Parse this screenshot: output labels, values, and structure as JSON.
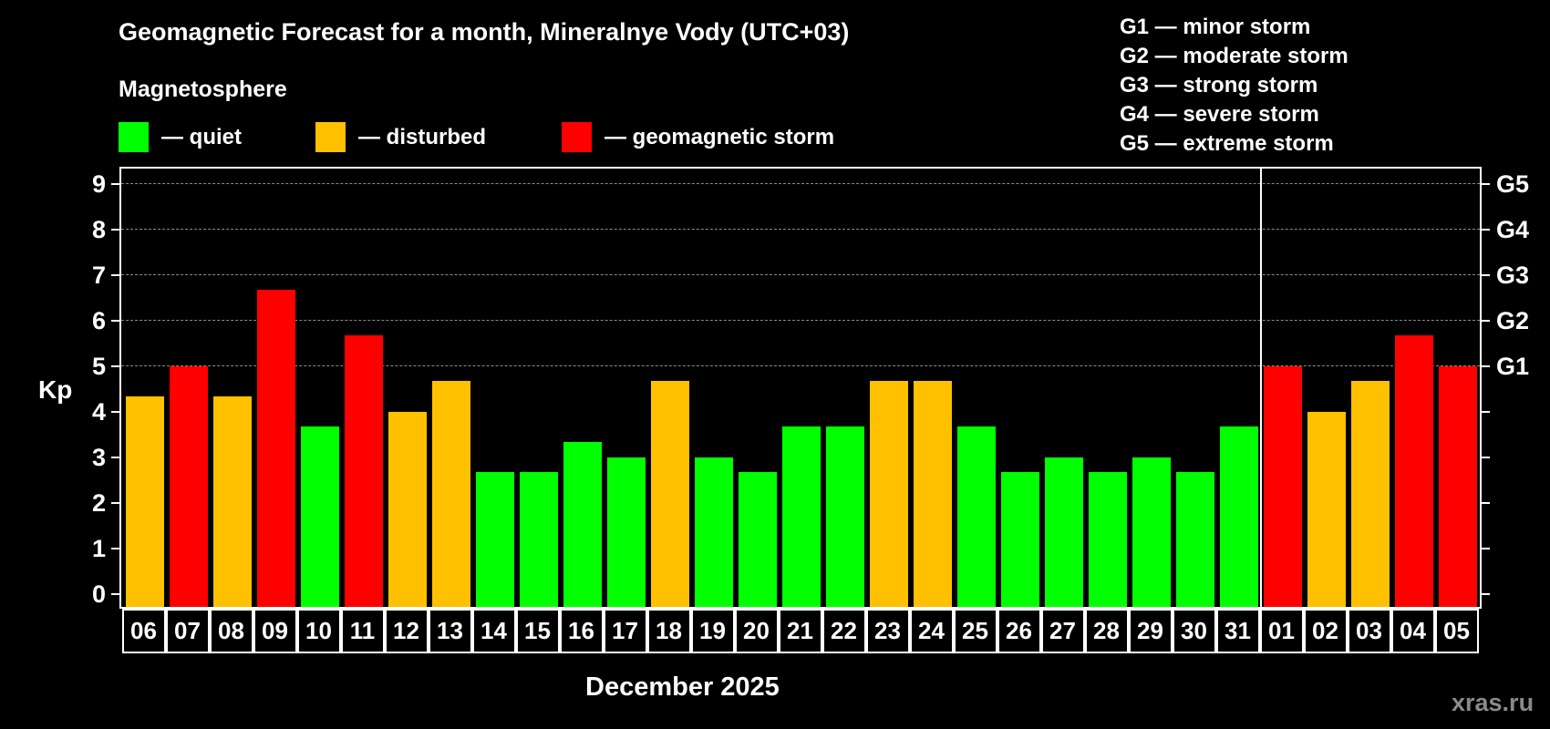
{
  "header": {
    "title": "Geomagnetic Forecast for a month, Mineralnye Vody (UTC+03)",
    "subtitle": "Magnetosphere"
  },
  "legend": [
    {
      "label": "— quiet",
      "color": "#00ff00"
    },
    {
      "label": "— disturbed",
      "color": "#ffc000"
    },
    {
      "label": "— geomagnetic storm",
      "color": "#ff0000"
    }
  ],
  "storm_scale": [
    "G1 — minor storm",
    "G2 — moderate storm",
    "G3 — strong storm",
    "G4 — severe storm",
    "G5 — extreme storm"
  ],
  "axis": {
    "ylabel": "Kp",
    "yticks": [
      "0",
      "1",
      "2",
      "3",
      "4",
      "5",
      "6",
      "7",
      "8",
      "9"
    ],
    "right_ticks": [
      {
        "kp": 5,
        "label": "G1"
      },
      {
        "kp": 6,
        "label": "G2"
      },
      {
        "kp": 7,
        "label": "G3"
      },
      {
        "kp": 8,
        "label": "G4"
      },
      {
        "kp": 9,
        "label": "G5"
      }
    ],
    "xlabel": "December 2025"
  },
  "watermark": "xras.ru",
  "colors": {
    "quiet": "#00ff00",
    "disturbed": "#ffc000",
    "storm": "#ff0000",
    "background": "#000000",
    "grid": "#8a8a8a"
  },
  "chart_data": {
    "type": "bar",
    "title": "Geomagnetic Forecast for a month, Mineralnye Vody (UTC+03)",
    "xlabel": "December 2025",
    "ylabel": "Kp",
    "ylim": [
      0,
      9
    ],
    "grid": true,
    "secondary_y_labels": {
      "5": "G1",
      "6": "G2",
      "7": "G3",
      "8": "G4",
      "9": "G5"
    },
    "categories": [
      "06",
      "07",
      "08",
      "09",
      "10",
      "11",
      "12",
      "13",
      "14",
      "15",
      "16",
      "17",
      "18",
      "19",
      "20",
      "21",
      "22",
      "23",
      "24",
      "25",
      "26",
      "27",
      "28",
      "29",
      "30",
      "31",
      "01",
      "02",
      "03",
      "04",
      "05"
    ],
    "values": [
      4.33,
      5.0,
      4.33,
      6.67,
      3.67,
      5.67,
      4.0,
      4.67,
      2.67,
      2.67,
      3.33,
      3.0,
      4.67,
      3.0,
      2.67,
      3.67,
      3.67,
      4.67,
      4.67,
      3.67,
      2.67,
      3.0,
      2.67,
      3.0,
      2.67,
      3.67,
      5.0,
      4.0,
      4.67,
      5.67,
      5.0
    ],
    "status": [
      "disturbed",
      "storm",
      "disturbed",
      "storm",
      "quiet",
      "storm",
      "disturbed",
      "disturbed",
      "quiet",
      "quiet",
      "quiet",
      "quiet",
      "disturbed",
      "quiet",
      "quiet",
      "quiet",
      "quiet",
      "disturbed",
      "disturbed",
      "quiet",
      "quiet",
      "quiet",
      "quiet",
      "quiet",
      "quiet",
      "quiet",
      "storm",
      "disturbed",
      "disturbed",
      "storm",
      "storm"
    ],
    "month_divider_after": "31",
    "legend": [
      "quiet",
      "disturbed",
      "geomagnetic storm"
    ]
  }
}
